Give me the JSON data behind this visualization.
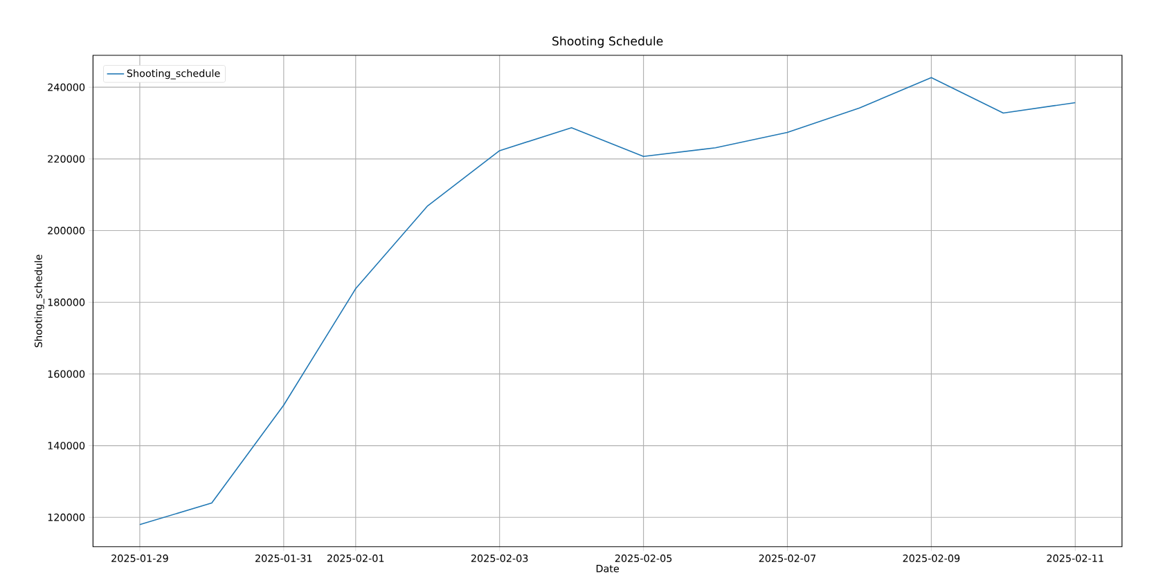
{
  "chart_data": {
    "type": "line",
    "title": "Shooting Schedule",
    "xlabel": "Date",
    "ylabel": "Shooting_schedule",
    "x": [
      "2025-01-29",
      "2025-01-30",
      "2025-01-31",
      "2025-02-01",
      "2025-02-02",
      "2025-02-03",
      "2025-02-04",
      "2025-02-05",
      "2025-02-06",
      "2025-02-07",
      "2025-02-08",
      "2025-02-09",
      "2025-02-10",
      "2025-02-11"
    ],
    "series": [
      {
        "name": "Shooting_schedule",
        "color": "#1f77b4",
        "values": [
          118000,
          124000,
          151300,
          183800,
          206900,
          222300,
          228700,
          220700,
          223100,
          227400,
          234200,
          242700,
          232800,
          235700
        ]
      }
    ],
    "xlim": [
      "2025-01-28T08:24",
      "2025-02-11T15:36"
    ],
    "ylim": [
      111800,
      248900
    ],
    "xticks": [
      "2025-01-29",
      "2025-01-31",
      "2025-02-01",
      "2025-02-03",
      "2025-02-05",
      "2025-02-07",
      "2025-02-09",
      "2025-02-11"
    ],
    "yticks": [
      120000,
      140000,
      160000,
      180000,
      200000,
      220000,
      240000
    ],
    "grid": true,
    "legend": "top left"
  }
}
